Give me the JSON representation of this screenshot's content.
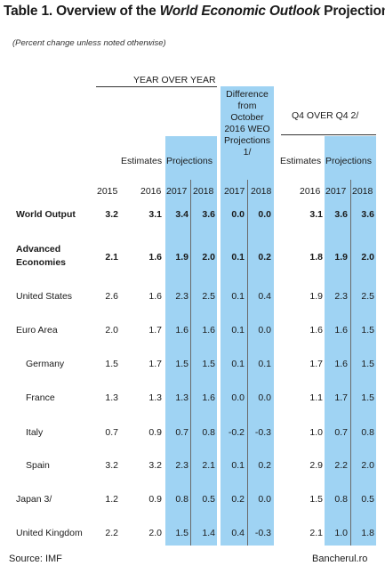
{
  "title": {
    "part1": "Table 1. Overview of the ",
    "italic": "World Economic Outlook",
    "part2": " Projections"
  },
  "subtitle": "(Percent change unless noted otherwise)",
  "headers": {
    "year_over_year": "YEAR OVER YEAR",
    "q4_over_q4": "Q4 OVER Q4 2/",
    "difference": "Difference from October 2016 WEO Projections 1/",
    "estimates": "Estimates",
    "projections": "Projections",
    "estimates_q4": "Estimates",
    "projections_q4": "Projections",
    "years": [
      "2015",
      "2016",
      "2017",
      "2018",
      "2017",
      "2018",
      "2016",
      "2017",
      "2018"
    ]
  },
  "rows": [
    {
      "label": "World Output",
      "values": [
        "3.2",
        "3.1",
        "3.4",
        "3.6",
        "0.0",
        "0.0",
        "3.1",
        "3.6",
        "3.6"
      ]
    },
    {
      "label": "Advanced Economies",
      "values": [
        "2.1",
        "1.6",
        "1.9",
        "2.0",
        "0.1",
        "0.2",
        "1.8",
        "1.9",
        "2.0"
      ]
    },
    {
      "label": "United States",
      "values": [
        "2.6",
        "1.6",
        "2.3",
        "2.5",
        "0.1",
        "0.4",
        "1.9",
        "2.3",
        "2.5"
      ]
    },
    {
      "label": "Euro Area",
      "values": [
        "2.0",
        "1.7",
        "1.6",
        "1.6",
        "0.1",
        "0.0",
        "1.6",
        "1.6",
        "1.5"
      ]
    },
    {
      "label": "Germany",
      "values": [
        "1.5",
        "1.7",
        "1.5",
        "1.5",
        "0.1",
        "0.1",
        "1.7",
        "1.6",
        "1.5"
      ]
    },
    {
      "label": "France",
      "values": [
        "1.3",
        "1.3",
        "1.3",
        "1.6",
        "0.0",
        "0.0",
        "1.1",
        "1.7",
        "1.5"
      ]
    },
    {
      "label": "Italy",
      "values": [
        "0.7",
        "0.9",
        "0.7",
        "0.8",
        "-0.2",
        "-0.3",
        "1.0",
        "0.7",
        "0.8"
      ]
    },
    {
      "label": "Spain",
      "values": [
        "3.2",
        "3.2",
        "2.3",
        "2.1",
        "0.1",
        "0.2",
        "2.9",
        "2.2",
        "2.0"
      ]
    },
    {
      "label": "Japan 3/",
      "values": [
        "1.2",
        "0.9",
        "0.8",
        "0.5",
        "0.2",
        "0.0",
        "1.5",
        "0.8",
        "0.5"
      ]
    },
    {
      "label": "United Kingdom",
      "values": [
        "2.2",
        "2.0",
        "1.5",
        "1.4",
        "0.4",
        "-0.3",
        "2.1",
        "1.0",
        "1.8"
      ]
    }
  ],
  "footer": {
    "source": "Source: IMF",
    "brand": "Bancherul.ro"
  }
}
